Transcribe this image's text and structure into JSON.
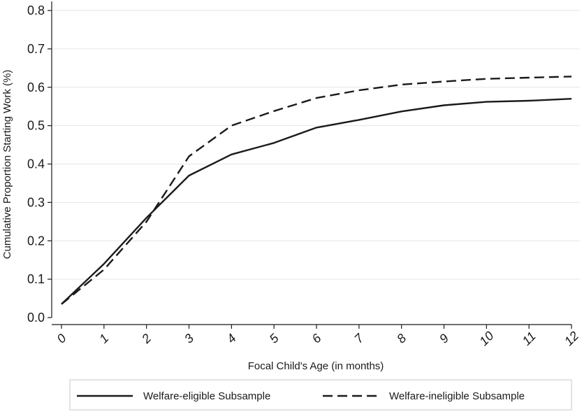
{
  "chart_data": {
    "type": "line",
    "xlabel": "Focal Child's Age (in months)",
    "ylabel": "Cumulative Proportion Starting Work (%)",
    "x": [
      0,
      1,
      2,
      3,
      4,
      5,
      6,
      7,
      8,
      9,
      10,
      11,
      12
    ],
    "x_tick_labels": [
      "0",
      "1",
      "2",
      "3",
      "4",
      "5",
      "6",
      "7",
      "8",
      "9",
      "10",
      "11",
      "12"
    ],
    "y_tick_labels": [
      "0.0",
      "0.1",
      "0.2",
      "0.3",
      "0.4",
      "0.5",
      "0.6",
      "0.7",
      "0.8"
    ],
    "xlim": [
      0,
      12
    ],
    "ylim": [
      0,
      0.8
    ],
    "grid": "horizontal",
    "legend_position": "bottom",
    "series": [
      {
        "name": "Welfare-eligible Subsample",
        "style": "solid",
        "color": "#1a1a1a",
        "values": [
          0.035,
          0.14,
          0.26,
          0.37,
          0.425,
          0.455,
          0.495,
          0.515,
          0.537,
          0.553,
          0.562,
          0.565,
          0.57
        ]
      },
      {
        "name": "Welfare-ineligible Subsample",
        "style": "dashed",
        "color": "#1a1a1a",
        "values": [
          0.035,
          0.125,
          0.25,
          0.42,
          0.5,
          0.538,
          0.572,
          0.592,
          0.607,
          0.615,
          0.622,
          0.625,
          0.628
        ]
      }
    ]
  }
}
